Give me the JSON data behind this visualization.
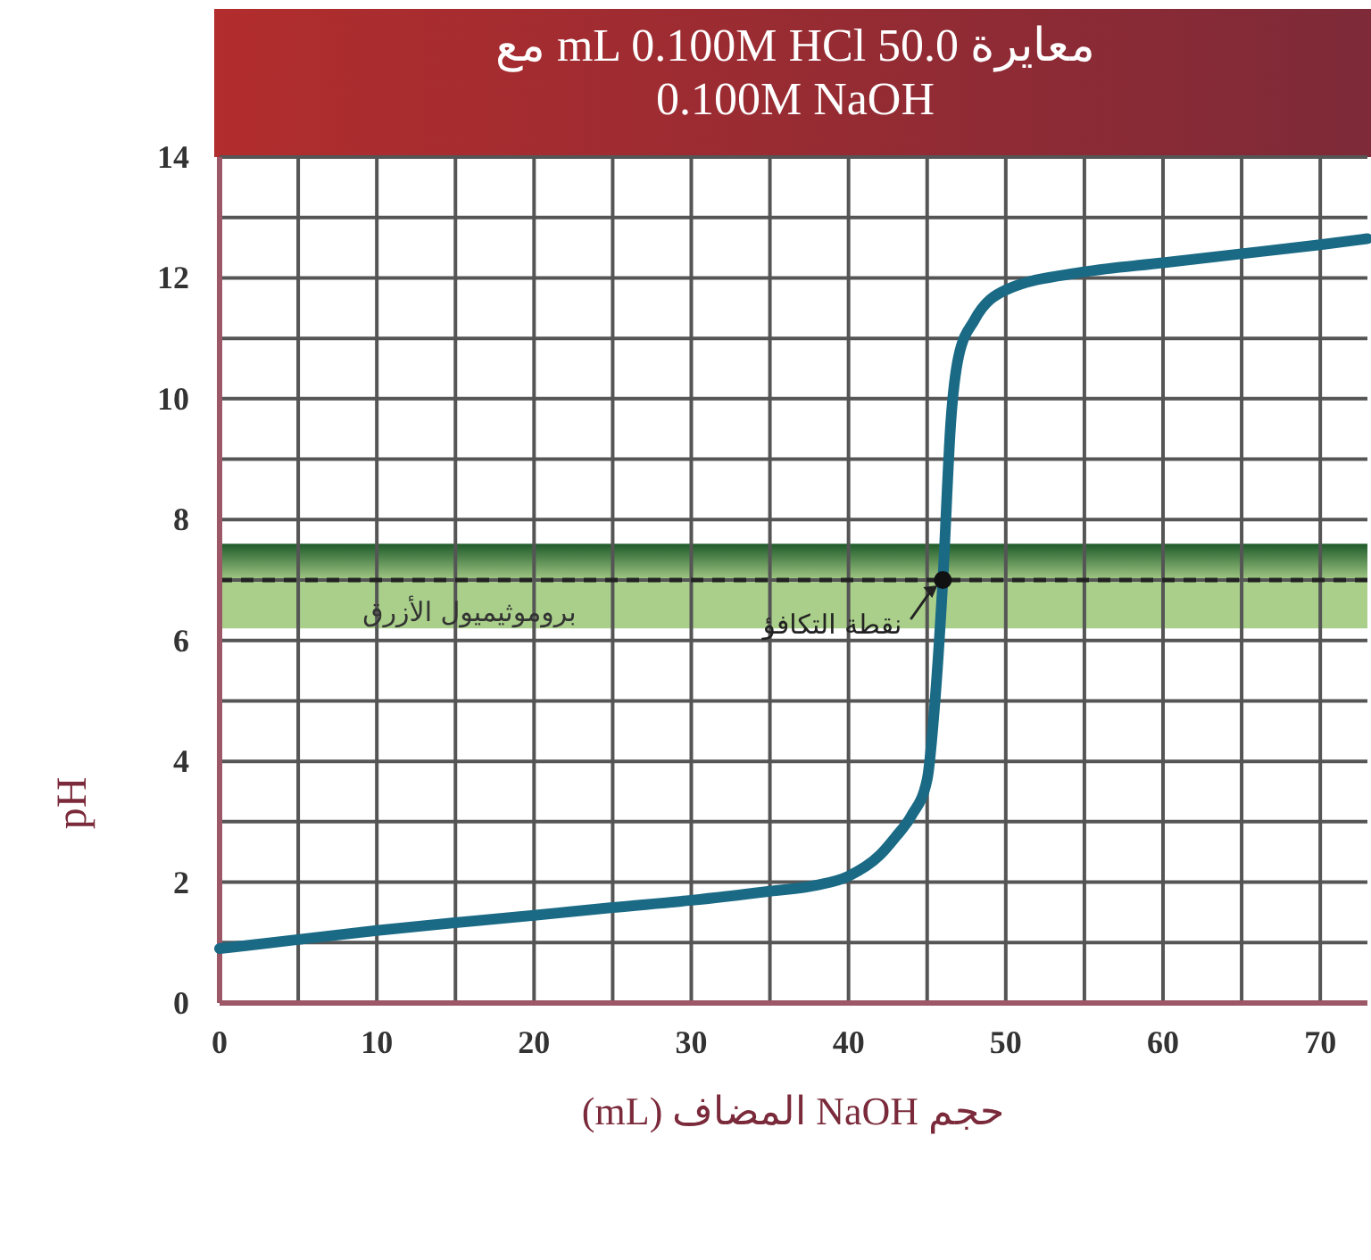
{
  "chart_data": {
    "type": "line",
    "title": "معايرة 50.0 mL 0.100M HCl مع\n0.100M NaOH",
    "xlabel": "حجم NaOH المضاف (mL)",
    "ylabel": "pH",
    "x": [
      0,
      5,
      10,
      15,
      20,
      25,
      30,
      35,
      38,
      40,
      42,
      43,
      44,
      45,
      45.5,
      46,
      46.5,
      47,
      48,
      50,
      55,
      60,
      65,
      70,
      73
    ],
    "series": [
      {
        "color": "#1a6a85",
        "values": [
          0.9,
          1.05,
          1.2,
          1.33,
          1.45,
          1.58,
          1.7,
          1.85,
          1.95,
          2.1,
          2.45,
          2.75,
          3.1,
          3.7,
          5,
          7,
          9.6,
          10.7,
          11.3,
          11.8,
          12.1,
          12.25,
          12.4,
          12.55,
          12.65
        ]
      }
    ],
    "xlim": [
      0,
      73
    ],
    "ylim": [
      0,
      14
    ],
    "xticks": [
      0,
      {
        "value": 5,
        "label": null
      },
      10,
      {
        "value": 15,
        "label": null
      },
      20,
      {
        "value": 25,
        "label": null
      },
      30,
      {
        "value": 35,
        "label": null
      },
      40,
      {
        "value": 45,
        "label": null
      },
      50,
      {
        "value": 55,
        "label": null
      },
      60,
      {
        "value": 65,
        "label": null
      },
      70
    ],
    "yticks": [
      0,
      {
        "value": 1,
        "label": null
      },
      2,
      {
        "value": 3,
        "label": null
      },
      4,
      {
        "value": 5,
        "label": null
      },
      6,
      {
        "value": 7,
        "label": null
      },
      8,
      {
        "value": 9,
        "label": null
      },
      10,
      {
        "value": 11,
        "label": null
      },
      12,
      {
        "value": 13,
        "label": null
      },
      14
    ],
    "grid": true,
    "line_style": "solid",
    "marker": "none",
    "bands": [
      {
        "axis": "y",
        "from": 6.2,
        "to": 7.6,
        "label": "بروموثيميول الأزرق",
        "color": "#a9cf8a"
      }
    ],
    "ref_lines": [
      {
        "axis": "y",
        "value": 7,
        "line_style": "dashed",
        "color": "#222222"
      }
    ],
    "annotations": [
      {
        "text": "نقطة التكافؤ",
        "x": 46,
        "y": 7
      }
    ]
  }
}
